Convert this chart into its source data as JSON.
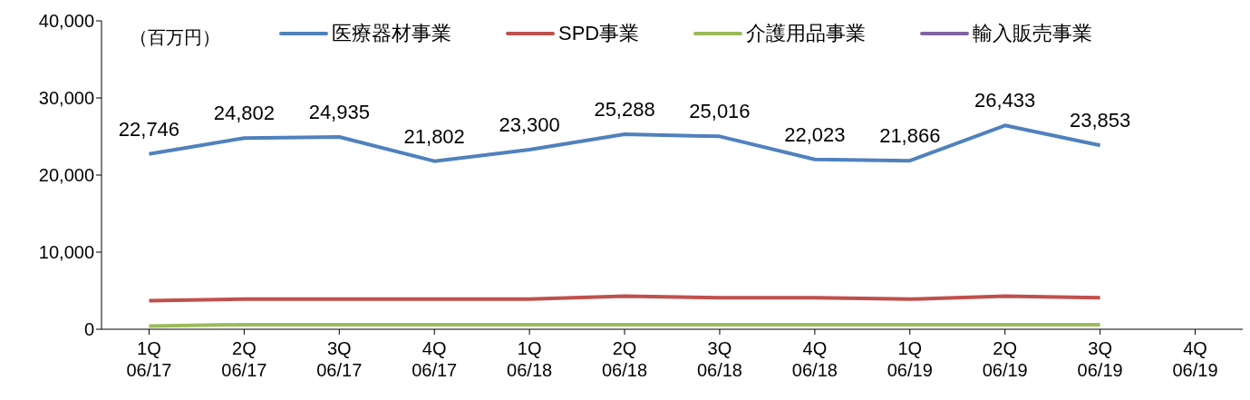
{
  "chart_data": {
    "type": "line",
    "categories": [
      "1Q\n06/17",
      "2Q\n06/17",
      "3Q\n06/17",
      "4Q\n06/17",
      "1Q\n06/18",
      "2Q\n06/18",
      "3Q\n06/18",
      "4Q\n06/18",
      "1Q\n06/19",
      "2Q\n06/19",
      "3Q\n06/19",
      "4Q\n06/19"
    ],
    "series": [
      {
        "name": "医療器材事業",
        "color": "#4f81bd",
        "values": [
          22746,
          24802,
          24935,
          21802,
          23300,
          25288,
          25016,
          22023,
          21866,
          26433,
          23853,
          null
        ],
        "value_labels": [
          "22,746",
          "24,802",
          "24,935",
          "21,802",
          "23,300",
          "25,288",
          "25,016",
          "22,023",
          "21,866",
          "26,433",
          "23,853",
          null
        ]
      },
      {
        "name": "SPD事業",
        "color": "#c0504d",
        "values": [
          3700,
          3900,
          3900,
          3900,
          3900,
          4300,
          4100,
          4100,
          3900,
          4300,
          4100,
          null
        ]
      },
      {
        "name": "介護用品事業",
        "color": "#9bbb59",
        "values": [
          400,
          600,
          600,
          600,
          600,
          600,
          600,
          600,
          600,
          600,
          600,
          null
        ]
      },
      {
        "name": "輸入販売事業",
        "color": "#8064a2",
        "values": [
          null,
          null,
          null,
          null,
          null,
          null,
          null,
          null,
          null,
          null,
          null,
          null
        ]
      }
    ],
    "ylim": [
      0,
      40000
    ],
    "yticks": [
      {
        "value": 0,
        "label": "0"
      },
      {
        "value": 10000,
        "label": "10,000"
      },
      {
        "value": 20000,
        "label": "20,000"
      },
      {
        "value": 30000,
        "label": "30,000"
      },
      {
        "value": 40000,
        "label": "40,000"
      }
    ],
    "annotations": [
      "（百万円）"
    ],
    "grid": false,
    "legend": "top",
    "marker": "none",
    "line_style": "solid"
  }
}
